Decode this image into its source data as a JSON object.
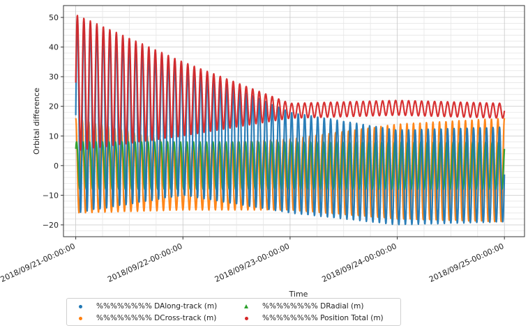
{
  "chart_data": {
    "type": "scatter",
    "title": "",
    "xlabel": "Time",
    "ylabel": "Orbital difference",
    "xlim": [
      "2018-09-20T21:15:00",
      "2018-09-25T04:30:00"
    ],
    "ylim": [
      -24,
      54
    ],
    "x_ticks": [
      "2018/09/21-00:00:00",
      "2018/09/22-00:00:00",
      "2018/09/23-00:00:00",
      "2018/09/24-00:00:00",
      "2018/09/25-00:00:00"
    ],
    "y_ticks": [
      -20,
      -10,
      0,
      10,
      20,
      30,
      40,
      50
    ],
    "x_start": "2018-09-21T00:00:00",
    "x_end": "2018-09-25T00:00:00",
    "oscillation_cycles": 66,
    "grid": true,
    "legend_location": "lower center (below plot)",
    "series": [
      {
        "name": "%%%%%%%% DAlong-track (m)",
        "color": "#1f77b4",
        "marker": "dot",
        "envelope_max": [
          [
            0,
            50
          ],
          [
            1,
            34
          ],
          [
            2,
            18
          ],
          [
            3,
            12
          ],
          [
            4,
            13
          ]
        ],
        "envelope_min": [
          [
            0,
            -16
          ],
          [
            1,
            -10
          ],
          [
            2,
            -16
          ],
          [
            3,
            -20
          ],
          [
            4,
            -19
          ]
        ]
      },
      {
        "name": "%%%%%%%% DCross-track (m)",
        "color": "#ff7f0e",
        "marker": "dot",
        "envelope_max": [
          [
            0,
            16
          ],
          [
            1,
            7
          ],
          [
            2,
            9
          ],
          [
            3,
            14
          ],
          [
            4,
            16
          ]
        ],
        "envelope_min": [
          [
            0,
            -16
          ],
          [
            1,
            -15
          ],
          [
            2,
            -15
          ],
          [
            3,
            -18
          ],
          [
            4,
            -19
          ]
        ]
      },
      {
        "name": "%%%%%%%% DRadial (m)",
        "color": "#2ca02c",
        "marker": "triangle",
        "envelope_max": [
          [
            0,
            8
          ],
          [
            1,
            8
          ],
          [
            2,
            8
          ],
          [
            3,
            8
          ],
          [
            4,
            8
          ]
        ],
        "envelope_min": [
          [
            0,
            -8
          ],
          [
            1,
            -8
          ],
          [
            2,
            -8
          ],
          [
            3,
            -8
          ],
          [
            4,
            -8
          ]
        ]
      },
      {
        "name": "%%%%%%%% Position Total (m)",
        "color": "#d62728",
        "marker": "dot",
        "envelope_max": [
          [
            0,
            51
          ],
          [
            1,
            35
          ],
          [
            2,
            21
          ],
          [
            3,
            22
          ],
          [
            4,
            21
          ]
        ],
        "envelope_min": [
          [
            0,
            5
          ],
          [
            1,
            10
          ],
          [
            2,
            16
          ],
          [
            3,
            17
          ],
          [
            4,
            16
          ]
        ]
      }
    ]
  },
  "legend": {
    "item_1": "%%%%%%%% DAlong-track (m)",
    "item_2": "%%%%%%%% DRadial (m)",
    "item_3": "%%%%%%%% DCross-track (m)",
    "item_4": "%%%%%%%% Position Total (m)"
  }
}
